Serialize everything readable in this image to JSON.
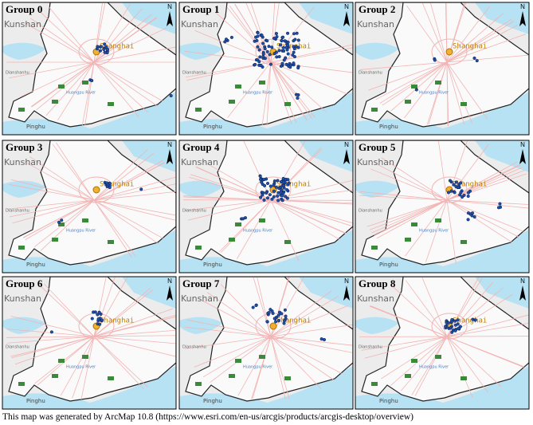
{
  "panels": [
    {
      "title": "Group 0"
    },
    {
      "title": "Group 1"
    },
    {
      "title": "Group 2"
    },
    {
      "title": "Group 3"
    },
    {
      "title": "Group 4"
    },
    {
      "title": "Group 5"
    },
    {
      "title": "Group 6"
    },
    {
      "title": "Group 7"
    },
    {
      "title": "Group 8"
    }
  ],
  "north": "N",
  "map_labels": {
    "city": "Shanghai",
    "left_city": "Kunshan",
    "south_city": "Pinghu",
    "river": "Huangpu River",
    "lake": "Dianshanhu"
  },
  "caption": "This map was generated by ArcMap 10.8 (https://www.esri.com/en-us/arcgis/products/arcgis-desktop/overview)"
}
